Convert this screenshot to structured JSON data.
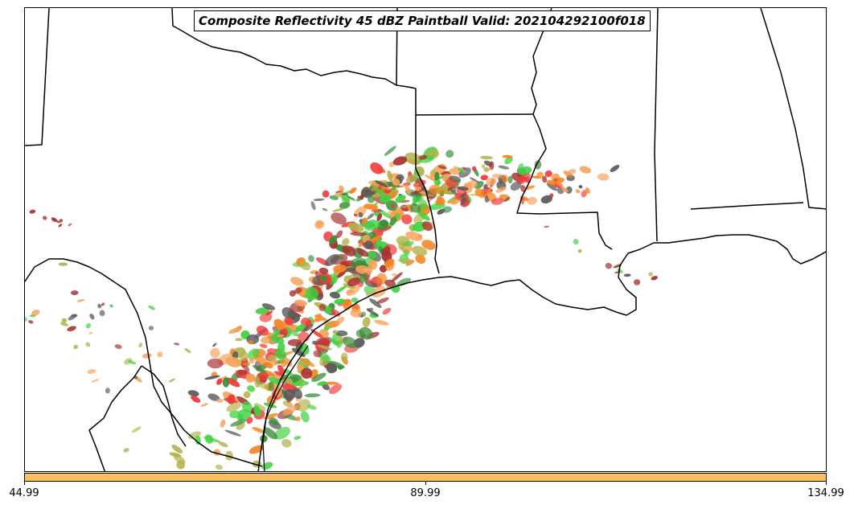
{
  "title": "Composite Reflectivity 45 dBZ Paintball Valid: 202104292100f018",
  "colorbar": {
    "color": "#fdbf5f",
    "ticks": [
      "44.99",
      "89.99",
      "134.99"
    ]
  },
  "paint_colors": {
    "red": "#f03a3a",
    "dark_red": "#a83232",
    "orange": "#f5841f",
    "light_orange": "#f7a25a",
    "yellow_orange": "#fdbf5f",
    "green": "#3fd23f",
    "dark_green": "#3a8f3a",
    "olive": "#b3b34a",
    "gray": "#5a5a5a"
  }
}
